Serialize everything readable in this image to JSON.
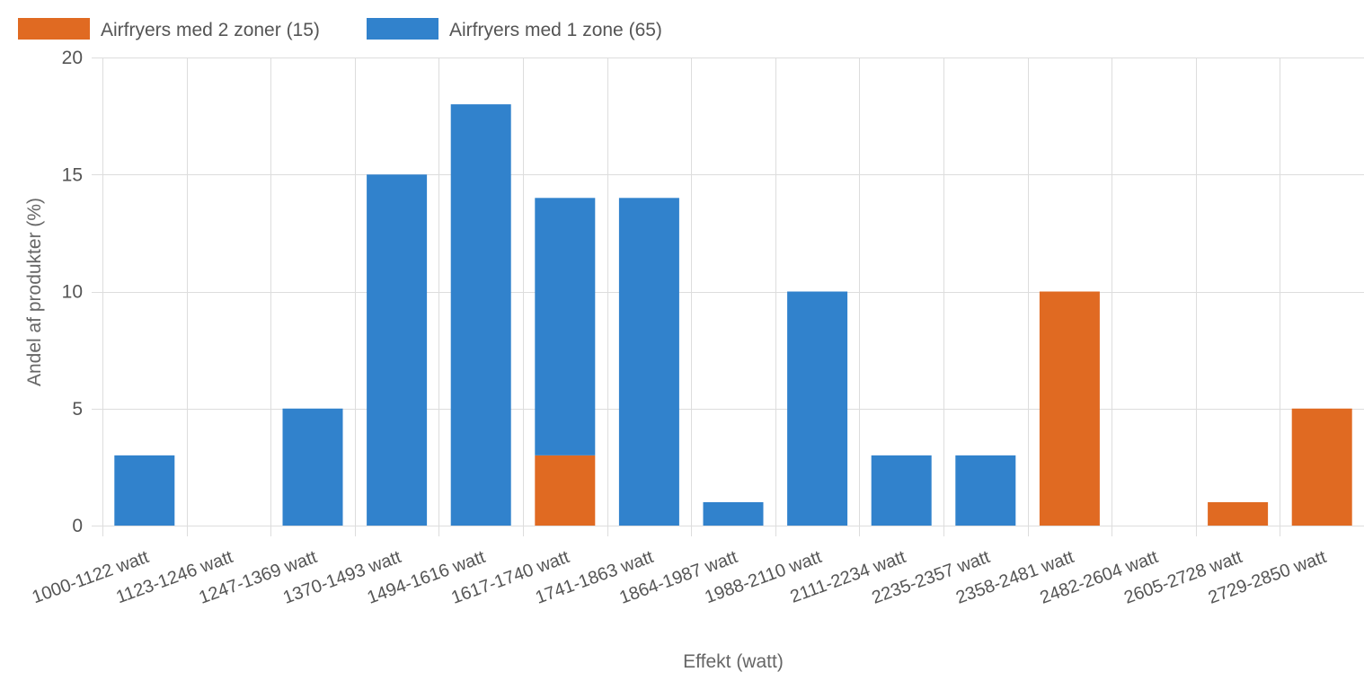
{
  "chart_data": {
    "type": "bar",
    "stacked": true,
    "title": "",
    "xlabel": "Effekt (watt)",
    "ylabel": "Andel af produkter (%)",
    "ylim": [
      0,
      20
    ],
    "yticks": [
      0,
      5,
      10,
      15,
      20
    ],
    "grid": true,
    "legend": "top-left",
    "categories": [
      "1000-1122 watt",
      "1123-1246 watt",
      "1247-1369 watt",
      "1370-1493 watt",
      "1494-1616 watt",
      "1617-1740 watt",
      "1741-1863 watt",
      "1864-1987 watt",
      "1988-2110 watt",
      "2111-2234 watt",
      "2235-2357 watt",
      "2358-2481 watt",
      "2482-2604 watt",
      "2605-2728 watt",
      "2729-2850 watt"
    ],
    "series": [
      {
        "name": "Airfryers med 2 zoner (15)",
        "color": "#e06a22",
        "values": [
          0,
          0,
          0,
          0,
          0,
          3,
          0,
          0,
          0,
          0,
          0,
          10,
          0,
          1,
          5
        ]
      },
      {
        "name": "Airfryers med 1 zone (65)",
        "color": "#3182cc",
        "values": [
          3,
          0,
          5,
          15,
          18,
          11,
          14,
          1,
          10,
          3,
          3,
          0,
          0,
          0,
          0
        ]
      }
    ]
  }
}
